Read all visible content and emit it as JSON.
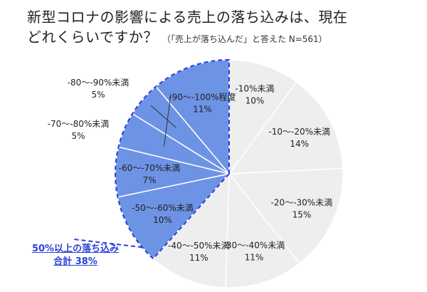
{
  "chart_data": {
    "type": "pie",
    "title_line1": "新型コロナの影響による売上の落ち込みは、現在",
    "title_line2": "どれくらいですか？",
    "subtitle": "（「売上が落ち込んだ」と答えた N=561）",
    "start": "12 o'clock, clockwise",
    "slices": [
      {
        "label": "-10%未満",
        "value": 10,
        "percent_label": "10%",
        "highlighted": false
      },
      {
        "label": "-10〜-20%未満",
        "value": 14,
        "percent_label": "14%",
        "highlighted": false
      },
      {
        "label": "-20〜-30%未満",
        "value": 15,
        "percent_label": "15%",
        "highlighted": false
      },
      {
        "label": "-30〜-40%未満",
        "value": 11,
        "percent_label": "11%",
        "highlighted": false
      },
      {
        "label": "-40〜-50%未満",
        "value": 11,
        "percent_label": "11%",
        "highlighted": false
      },
      {
        "label": "-50〜-60%未満",
        "value": 10,
        "percent_label": "10%",
        "highlighted": true
      },
      {
        "label": "-60〜-70%未満",
        "value": 7,
        "percent_label": "7%",
        "highlighted": true
      },
      {
        "label": "-70〜-80%未満",
        "value": 5,
        "percent_label": "5%",
        "highlighted": true
      },
      {
        "label": "-80〜-90%未満",
        "value": 5,
        "percent_label": "5%",
        "highlighted": true
      },
      {
        "label": "-90〜-100%程度",
        "value": 11,
        "percent_label": "11%",
        "highlighted": true
      }
    ],
    "colors": {
      "default_fill": "#eeeeee",
      "highlight_fill": "#6d93e4",
      "highlight_outline": "#2a3fd6",
      "separator": "#ffffff"
    },
    "annotation": {
      "line1": "50%以上の落ち込み",
      "line2": "合計 38%"
    }
  }
}
